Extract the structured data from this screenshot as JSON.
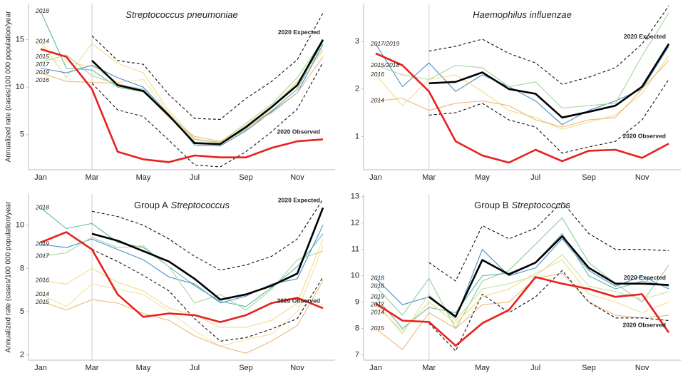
{
  "chart_data": [
    {
      "type": "line",
      "title_italic": "Streptococcus pneumoniae",
      "ylabel": "Annualized rate (cases/100 000 population/year",
      "categories": [
        "Jan",
        null,
        "Mar",
        null,
        "May",
        null,
        "Jul",
        null,
        "Sep",
        null,
        "Nov",
        null
      ],
      "ylim": [
        1.3,
        18.8
      ],
      "yticks": [
        5,
        10,
        15
      ],
      "series": [
        {
          "name": "2018",
          "color": "#5bb8a6",
          "values": [
            18,
            12,
            11.8,
            10,
            9.5,
            7,
            4.2,
            4,
            5.6,
            7.5,
            9.8,
            14.8
          ]
        },
        {
          "name": "2014",
          "color": "#f3dc8a",
          "values": [
            14.8,
            11,
            14.6,
            12.5,
            11.5,
            7.5,
            4.6,
            4,
            5.5,
            7.8,
            10.5,
            13.8
          ]
        },
        {
          "name": "2015",
          "color": "#f5e3a3",
          "values": [
            13.2,
            12.6,
            12.2,
            10.5,
            10.8,
            7.2,
            4.4,
            4.1,
            6,
            8,
            10.6,
            14
          ]
        },
        {
          "name": "2017",
          "color": "#a8d5a0",
          "values": [
            12.6,
            13.4,
            11.2,
            10.3,
            9.8,
            7.2,
            4.5,
            4.2,
            6.2,
            8.2,
            11,
            15
          ]
        },
        {
          "name": "2019",
          "color": "#4a90c8",
          "values": [
            12,
            11.5,
            12.3,
            11,
            10,
            7.1,
            3.9,
            3.8,
            5.4,
            7.4,
            9.4,
            14.5
          ]
        },
        {
          "name": "2016",
          "color": "#f0b87a",
          "values": [
            11.5,
            10.6,
            10.5,
            10.4,
            9.6,
            6.8,
            4.8,
            4.3,
            5.7,
            7.3,
            9.4,
            13.2
          ]
        },
        {
          "color": "#111",
          "dashed": true,
          "values": [
            null,
            null,
            15.4,
            12.8,
            12.4,
            9.2,
            6.7,
            6.6,
            8.8,
            10.6,
            12.9,
            17.8
          ]
        },
        {
          "color": "#111",
          "dashed": true,
          "values": [
            null,
            null,
            10.4,
            7.6,
            6.9,
            4.4,
            1.8,
            1.6,
            3.2,
            5.3,
            7.7,
            12.6
          ]
        },
        {
          "name": "2020 Expected",
          "color": "#000",
          "values": [
            null,
            null,
            12.8,
            10.2,
            9.6,
            7.0,
            4.1,
            4.0,
            5.8,
            7.9,
            10.2,
            15.0
          ]
        },
        {
          "name": "2020 Observed",
          "color": "#e8201c",
          "values": [
            14,
            13.2,
            9.8,
            3.2,
            2.4,
            2.1,
            2.8,
            2.6,
            2.6,
            3.6,
            4.3,
            4.5
          ]
        }
      ]
    },
    {
      "type": "line",
      "title_italic": "Haemophilus influenzae",
      "categories": [
        "Jan",
        null,
        "Mar",
        null,
        "May",
        null,
        "Jul",
        null,
        "Sep",
        null,
        "Nov",
        null
      ],
      "ylim": [
        0.3,
        3.8
      ],
      "yticks": [
        1,
        2,
        3
      ],
      "series": [
        {
          "name": "2017/2019",
          "color": "#4a90c8",
          "values": [
            2.95,
            2.05,
            2.55,
            1.95,
            2.3,
            2.05,
            1.75,
            1.25,
            1.55,
            1.75,
            2,
            2.9
          ]
        },
        {
          "name": "2015/2018",
          "color": "#a8d5a0",
          "values": [
            2.5,
            2.3,
            2.2,
            2.5,
            2.45,
            2.05,
            2.15,
            1.6,
            1.65,
            1.7,
            2.7,
            3.6
          ]
        },
        {
          "name": "2016",
          "color": "#f3dc8a",
          "values": [
            2.3,
            1.65,
            2.2,
            2.3,
            1.95,
            1.55,
            1.4,
            1.15,
            1.3,
            1.45,
            1.9,
            2.7
          ]
        },
        {
          "name": "2014",
          "color": "#f0b87a",
          "values": [
            1.75,
            1.8,
            1.55,
            1.7,
            1.75,
            1.65,
            1.35,
            1.2,
            1.35,
            1.4,
            2.0,
            2.6
          ]
        },
        {
          "color": "#111",
          "dashed": true,
          "values": [
            null,
            null,
            2.8,
            2.9,
            3.05,
            2.75,
            2.55,
            2.1,
            2.25,
            2.45,
            2.95,
            3.75
          ]
        },
        {
          "color": "#111",
          "dashed": true,
          "values": [
            null,
            null,
            1.45,
            1.5,
            1.7,
            1.35,
            1.2,
            0.65,
            0.78,
            0.9,
            1.35,
            2.2
          ]
        },
        {
          "name": "2020 Expected",
          "color": "#000",
          "values": [
            null,
            null,
            2.12,
            2.15,
            2.35,
            2.0,
            1.9,
            1.4,
            1.52,
            1.65,
            2.05,
            2.95
          ]
        },
        {
          "name": "2020 Observed",
          "color": "#e8201c",
          "values": [
            2.75,
            2.5,
            1.95,
            0.9,
            0.6,
            0.45,
            0.72,
            0.48,
            0.7,
            0.72,
            0.55,
            0.85
          ]
        }
      ]
    },
    {
      "type": "line",
      "title": "Group A",
      "title_italic": "Streptococcus",
      "ylabel": "Annualized rate (cases/100 000 population/year",
      "categories": [
        "Jan",
        null,
        "Mar",
        null,
        "May",
        null,
        "Jul",
        null,
        "Sep",
        null,
        "Nov",
        null
      ],
      "ylim": [
        2.2,
        11.8
      ],
      "yticks": [
        {
          "value": 2.5,
          "label": "2"
        },
        5,
        {
          "value": 7.5,
          "label": "8"
        },
        10
      ],
      "series": [
        {
          "name": "2018",
          "color": "#5bb8a6",
          "values": [
            11,
            9.8,
            10.1,
            9.0,
            8.7,
            7.6,
            6.5,
            5.6,
            5.3,
            6.4,
            7.6,
            9.5
          ]
        },
        {
          "name": "2019",
          "color": "#4a90c8",
          "values": [
            8.9,
            8.7,
            9.2,
            8.6,
            8.0,
            7.0,
            6.6,
            5.5,
            5.9,
            6.6,
            6.9,
            10.0
          ]
        },
        {
          "name": "2017",
          "color": "#a8d5a0",
          "values": [
            8.2,
            8.4,
            9.3,
            8.7,
            8.8,
            7.6,
            5.5,
            6.0,
            5.1,
            6.3,
            8.0,
            8.5
          ]
        },
        {
          "name": "2016",
          "color": "#f3dc8a",
          "values": [
            6.8,
            6.6,
            7.5,
            6.7,
            6.2,
            5.2,
            4.8,
            4.1,
            4.1,
            4.5,
            5.5,
            9.2
          ]
        },
        {
          "name": "2014",
          "color": "#f5e3a3",
          "values": [
            6.0,
            5.3,
            6.6,
            6.3,
            6.0,
            5.0,
            3.9,
            3.0,
            3.4,
            3.7,
            5.0,
            8.8
          ]
        },
        {
          "name": "2015",
          "color": "#f0b87a",
          "values": [
            5.6,
            5.1,
            5.7,
            5.5,
            4.9,
            4.5,
            3.6,
            3.0,
            2.6,
            3.3,
            4.2,
            6.8
          ]
        },
        {
          "color": "#111",
          "dashed": true,
          "values": [
            null,
            null,
            10.8,
            10.5,
            10.0,
            9.2,
            8.2,
            7.4,
            7.7,
            8.2,
            9.2,
            11.5
          ]
        },
        {
          "color": "#111",
          "dashed": true,
          "values": [
            null,
            null,
            8.6,
            7.9,
            7.1,
            6.2,
            4.6,
            3.3,
            3.5,
            4.0,
            4.6,
            7.0
          ]
        },
        {
          "name": "2020 Expected",
          "color": "#000",
          "values": [
            null,
            null,
            9.5,
            9.1,
            8.5,
            7.9,
            6.9,
            5.7,
            6.0,
            6.5,
            7.2,
            11.0
          ]
        },
        {
          "name": "2020 Observed",
          "color": "#e8201c",
          "values": [
            9.0,
            9.6,
            8.6,
            6.0,
            4.7,
            4.9,
            4.8,
            4.4,
            4.8,
            5.5,
            5.8,
            5.2
          ]
        }
      ]
    },
    {
      "type": "line",
      "title": "Group B",
      "title_italic": "Streptococcus",
      "categories": [
        "Jan",
        null,
        "Mar",
        null,
        "May",
        null,
        "Jul",
        null,
        "Sep",
        null,
        "Nov",
        null
      ],
      "ylim": [
        6.8,
        13.1
      ],
      "yticks": [
        7,
        8,
        9,
        10,
        11,
        12,
        13
      ],
      "series": [
        {
          "name": "2018",
          "color": "#4a90c8",
          "values": [
            9.9,
            8.9,
            9.2,
            8.4,
            11.0,
            10.0,
            10.3,
            11.4,
            10.2,
            9.6,
            10,
            9.5
          ]
        },
        {
          "name": "2016",
          "color": "#8fcf9a",
          "values": [
            9.6,
            8.5,
            9.9,
            8.0,
            9.8,
            10.2,
            11.2,
            12.2,
            10.5,
            9.7,
            9.0,
            10.4
          ]
        },
        {
          "name": "2019",
          "color": "#5bb8a6",
          "values": [
            9.2,
            8.0,
            8.8,
            8.6,
            10.0,
            10.1,
            10.5,
            11.6,
            10.0,
            9.5,
            9.8,
            9.6
          ]
        },
        {
          "name": "2017",
          "color": "#c5e3a8",
          "values": [
            9.0,
            7.8,
            9.3,
            8.3,
            9.5,
            9.7,
            10.0,
            10.8,
            9.6,
            9.4,
            9.1,
            9.4
          ]
        },
        {
          "name": "2014",
          "color": "#f3dc8a",
          "values": [
            8.9,
            7.9,
            9.0,
            8.2,
            9.2,
            9.5,
            10.1,
            10.6,
            9.3,
            9.0,
            8.6,
            9.0
          ]
        },
        {
          "name": "2015",
          "color": "#f0b87a",
          "values": [
            8.0,
            7.2,
            8.6,
            8.0,
            8.9,
            9.0,
            9.9,
            10.1,
            9.0,
            8.5,
            8.4,
            8.5
          ]
        },
        {
          "color": "#111",
          "dashed": true,
          "values": [
            null,
            null,
            10.5,
            9.8,
            11.9,
            11.4,
            11.8,
            12.8,
            11.6,
            11.0,
            11.0,
            10.95
          ]
        },
        {
          "color": "#111",
          "dashed": true,
          "values": [
            null,
            null,
            8.2,
            7.15,
            9.3,
            8.6,
            9.2,
            10.2,
            9.0,
            8.4,
            8.4,
            8.3
          ]
        },
        {
          "name": "2020 Expected",
          "color": "#000",
          "values": [
            null,
            null,
            9.2,
            8.45,
            10.6,
            10.05,
            10.5,
            11.5,
            10.3,
            9.7,
            9.7,
            9.65
          ]
        },
        {
          "name": "2020 Observed",
          "color": "#e8201c",
          "values": [
            8.95,
            8.3,
            8.25,
            7.35,
            8.2,
            8.7,
            9.95,
            9.7,
            9.5,
            9.2,
            9.3,
            7.85
          ]
        }
      ]
    }
  ]
}
